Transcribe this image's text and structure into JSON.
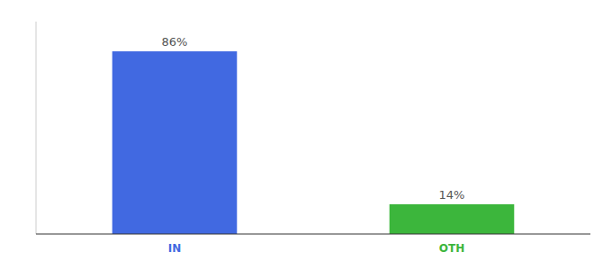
{
  "chart_data": {
    "type": "bar",
    "categories": [
      "IN",
      "OTH"
    ],
    "values": [
      86,
      14
    ],
    "value_labels": [
      "86%",
      "14%"
    ],
    "colors": [
      "#4169e1",
      "#3cb63c"
    ],
    "ylim": [
      0,
      100
    ],
    "data_labels": true,
    "tick_labels": "x"
  }
}
